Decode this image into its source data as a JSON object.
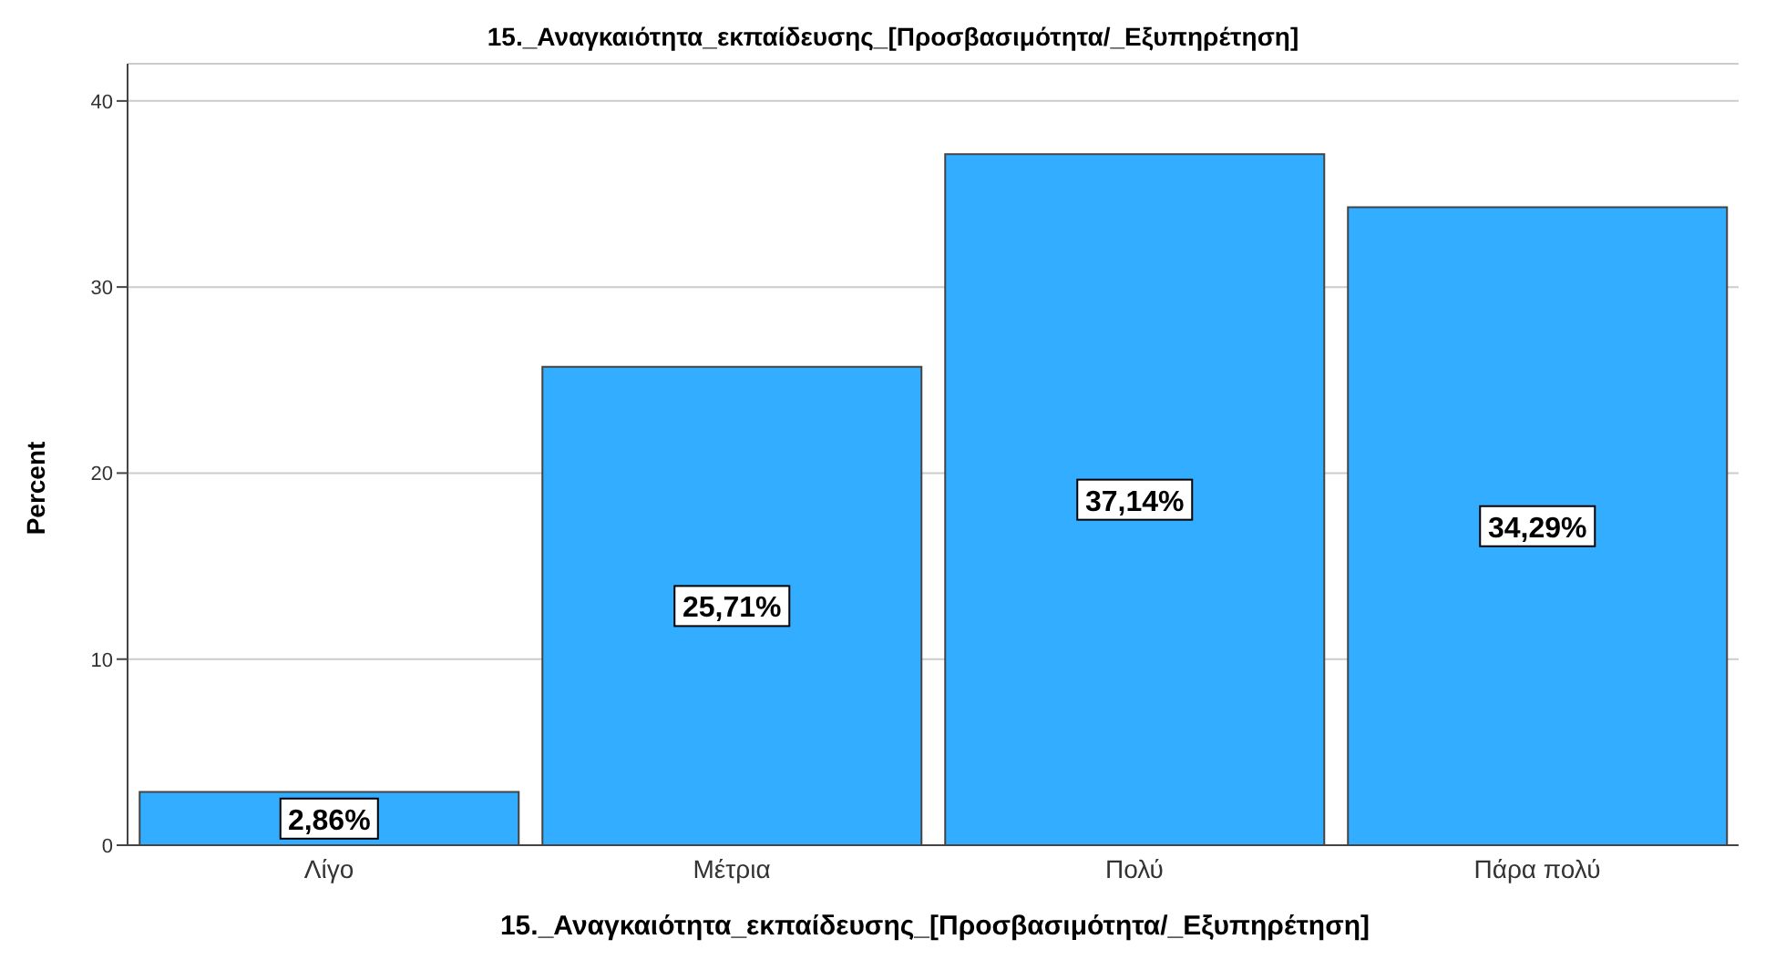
{
  "chart_data": {
    "type": "bar",
    "title": "15._Αναγκαιότητα_εκπαίδευσης_[Προσβασιμότητα/_Εξυπηρέτηση]",
    "xlabel": "15._Αναγκαιότητα_εκπαίδευσης_[Προσβασιμότητα/_Εξυπηρέτηση]",
    "ylabel": "Percent",
    "categories": [
      "Λίγο",
      "Μέτρια",
      "Πολύ",
      "Πάρα πολύ"
    ],
    "values": [
      2.86,
      25.71,
      37.14,
      34.29
    ],
    "value_labels": [
      "2,86%",
      "25,71%",
      "37,14%",
      "34,29%"
    ],
    "color": "#33adff",
    "ylim": [
      0,
      42
    ],
    "yticks": [
      0,
      10,
      20,
      30,
      40
    ],
    "grid": "y",
    "legend": false
  }
}
